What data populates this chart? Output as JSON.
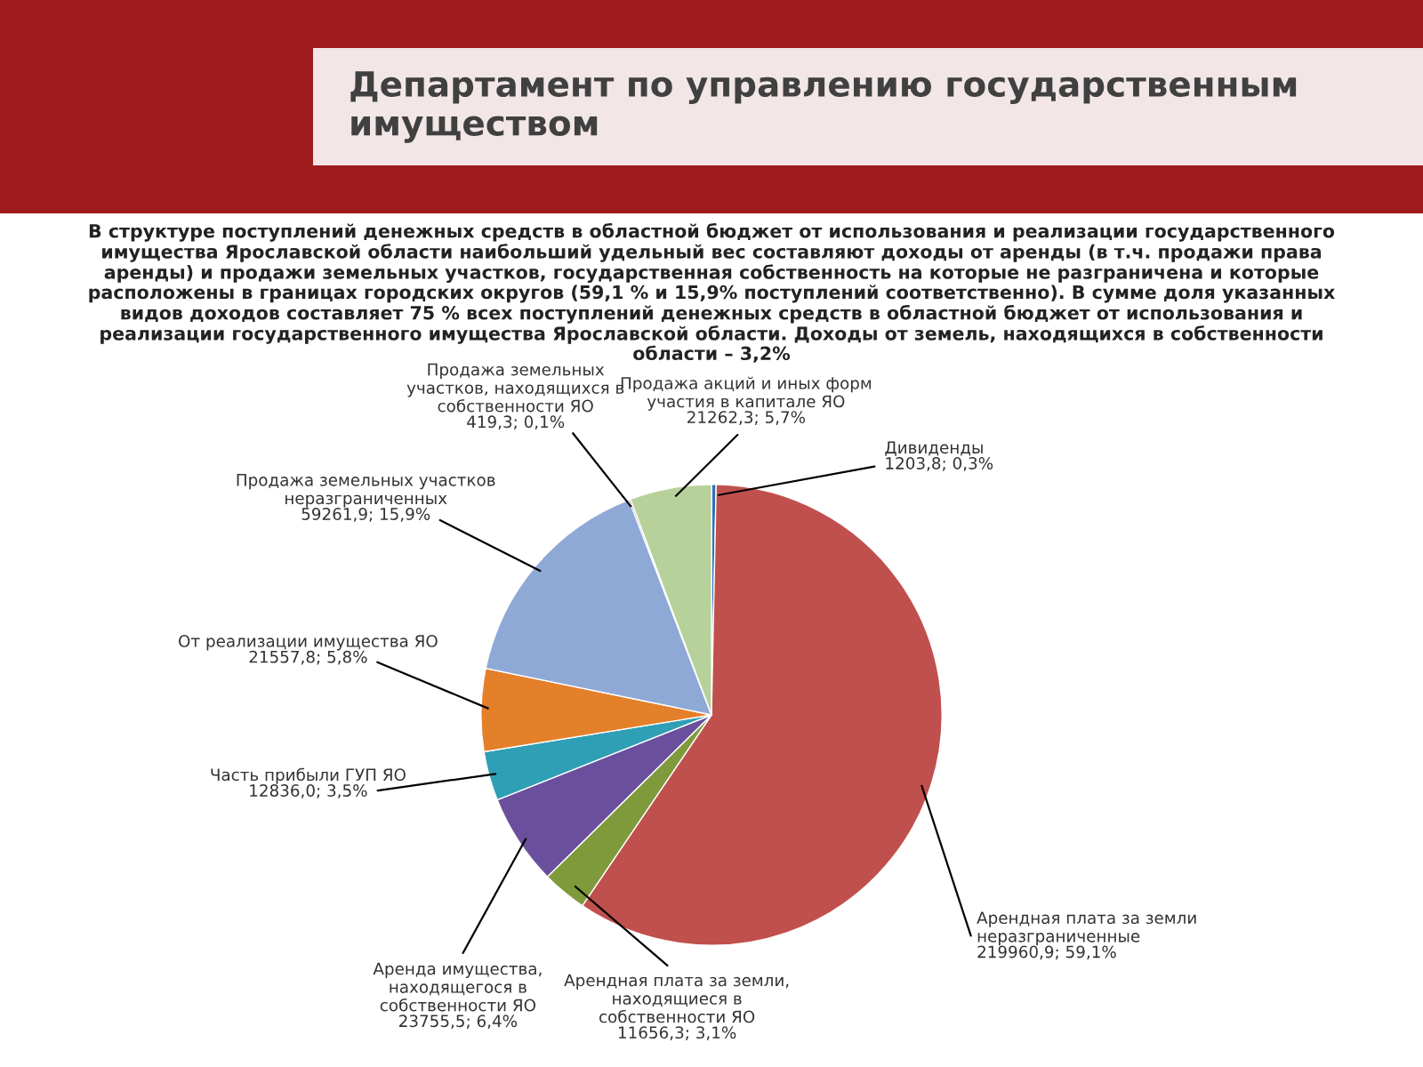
{
  "chart_data": {
    "type": "pie",
    "title": "Департамент по управлению государственным имуществом",
    "subtitle": "В структуре поступлений денежных средств в областной бюджет от использования и реализации государственного имущества Ярославской области наибольший удельный вес составляют доходы от аренды (в т.ч. продажи права аренды) и продажи земельных участков, государственная собственность на которые не разграничена и которые расположены в границах городских округов (59,1 % и 15,9% поступлений соответственно). В сумме доля указанных видов доходов составляет 75 % всех поступлений денежных средств в областной бюджет от использования и реализации государственного имущества Ярославской области. Доходы от земель, находящихся в собственности области – 3,2%",
    "categories": [
      "Дивиденды",
      "Арендная плата за земли неразграниченные",
      "Арендная плата за земли, находящиеся в собственности ЯО",
      "Аренда имущества, находящегося в собственности ЯО",
      "Часть прибыли ГУП ЯО",
      "От реализации имущества ЯО",
      "Продажа земельных участков неразграниченных",
      "Продажа земельных участков, находящихся в собственности ЯО",
      "Продажа акций и иных форм участия в капитале ЯО"
    ],
    "values": [
      1203.8,
      219960.9,
      11656.3,
      23755.5,
      12836.0,
      21557.8,
      59261.9,
      419.3,
      21262.3
    ],
    "colors": [
      "#2e6fba",
      "#c0504d",
      "#7f9a3a",
      "#6a4f9c",
      "#2f9fb5",
      "#e47f2a",
      "#8fa9d6",
      "#6b2f2a",
      "#b7d19a"
    ],
    "value_labels": [
      "1203,8; 0,3%",
      "219960,9; 59,1%",
      "11656,3; 3,1%",
      "23755,5; 6,4%",
      "12836,0; 3,5%",
      "21557,8; 5,8%",
      "59261,9; 15,9%",
      "419,3; 0,1%",
      "21262,3; 5,7%"
    ],
    "legend": false
  }
}
